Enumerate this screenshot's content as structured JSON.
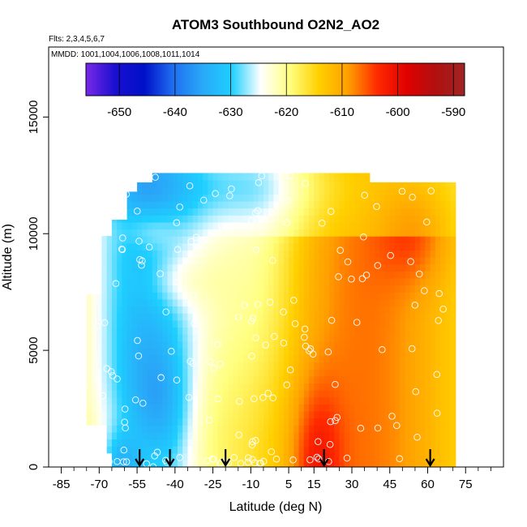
{
  "chart_data": {
    "type": "heatmap",
    "title": "ATOM3 Southbound O2N2_AO2",
    "annotations": {
      "flights": "Flts: 2,3,4,5,6,7",
      "mmdd": "MMDD: 1001,1004,1006,1008,1011,1014"
    },
    "xlabel": "Latitude (deg N)",
    "ylabel": "Altitude (m)",
    "xlim": [
      -90,
      90
    ],
    "ylim": [
      0,
      18000
    ],
    "x_ticks": [
      -85,
      -70,
      -55,
      -40,
      -25,
      -10,
      5,
      15,
      30,
      45,
      60,
      75
    ],
    "x_minor_ticks": [
      -80,
      -75,
      -65,
      -60,
      -50,
      -45,
      -35,
      -30,
      -20,
      -15,
      -5,
      0,
      10,
      20,
      25,
      35,
      40,
      50,
      55,
      65,
      70,
      80,
      85
    ],
    "y_ticks": [
      0,
      5000,
      10000,
      15000
    ],
    "colorbar": {
      "range": [
        -656,
        -588
      ],
      "ticks": [
        -650,
        -640,
        -630,
        -620,
        -610,
        -600,
        -590
      ],
      "colors": [
        "#7a28e8",
        "#1a0fd0",
        "#0010c8",
        "#1f6ff0",
        "#2aa8f8",
        "#1ecfff",
        "#ffffff",
        "#ffff80",
        "#ffd000",
        "#ff9f00",
        "#ff2a00",
        "#e00000",
        "#b01010",
        "#a02424"
      ]
    },
    "profile_arrows_lat": [
      -54,
      -42,
      -20,
      19,
      61
    ],
    "grid": false
  }
}
